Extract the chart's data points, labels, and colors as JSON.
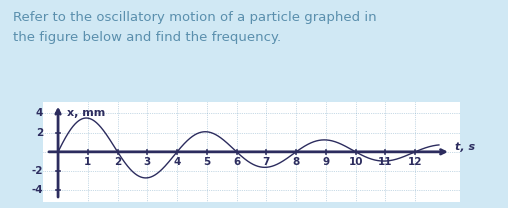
{
  "title_text": "Refer to the oscillatory motion of a particle graphed in\nthe figure below and find the frequency.",
  "title_color": "#5a8fad",
  "title_bg": "#d0e8f4",
  "graph_bg": "#ffffff",
  "graph_border_bg": "#d0e8f4",
  "curve_color": "#2c2c5e",
  "axis_color": "#2c2c5e",
  "ylabel": "x, mm",
  "xlabel": "t, s",
  "ylim": [
    -5.2,
    5.2
  ],
  "xlim": [
    -0.5,
    13.5
  ],
  "yticks": [
    -4,
    -2,
    2,
    4
  ],
  "xticks": [
    1,
    2,
    3,
    4,
    5,
    6,
    7,
    8,
    9,
    10,
    11,
    12
  ],
  "amplitude": 4.0,
  "decay": 0.13,
  "period": 4.0,
  "t_start": 0.0,
  "t_end": 12.8,
  "grid_color": "#6699bb",
  "grid_alpha": 0.7,
  "text_fontsize": 9.5,
  "tick_fontsize": 7.5,
  "label_fontsize": 8
}
